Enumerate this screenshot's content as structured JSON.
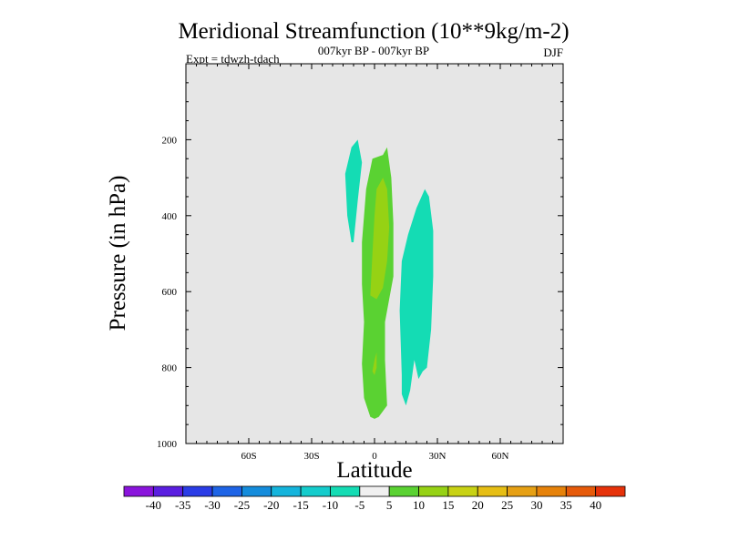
{
  "chart_data": {
    "type": "contour",
    "title": "Meridional Streamfunction (10**9kg/m-2)",
    "subtitle": "007kyr BP - 007kyr BP",
    "left_label": "Expt = tdwzh-tdach",
    "right_label": "DJF",
    "xlabel": "Latitude",
    "ylabel": "Pressure (in hPa)",
    "xlim": [
      -90,
      90
    ],
    "ylim": [
      1000,
      0
    ],
    "x_ticks": [
      {
        "value": -60,
        "label": "60S"
      },
      {
        "value": -30,
        "label": "30S"
      },
      {
        "value": 0,
        "label": "0"
      },
      {
        "value": 30,
        "label": "30N"
      },
      {
        "value": 60,
        "label": "60N"
      }
    ],
    "y_ticks": [
      {
        "value": 200,
        "label": "200"
      },
      {
        "value": 400,
        "label": "400"
      },
      {
        "value": 600,
        "label": "600"
      },
      {
        "value": 800,
        "label": "800"
      },
      {
        "value": 1000,
        "label": "1000"
      }
    ],
    "background_color": "#e6e6e6",
    "colorbar": {
      "labels": [
        "-40",
        "-35",
        "-30",
        "-25",
        "-20",
        "-15",
        "-10",
        "-5",
        "5",
        "10",
        "15",
        "20",
        "25",
        "30",
        "35",
        "40"
      ],
      "colors": [
        "#8a14dc",
        "#5a1ee0",
        "#2a3ce6",
        "#1e64e6",
        "#148cdc",
        "#14b4dc",
        "#14cccc",
        "#14dcb4",
        "#f0f0f0",
        "#5ad232",
        "#96d214",
        "#c8d214",
        "#e6be14",
        "#e6a014",
        "#e6820a",
        "#e65a0a",
        "#e6320a"
      ]
    },
    "regions": [
      {
        "name": "southern-cell-upper",
        "level": "-10 to -5",
        "color": "#14dcb4",
        "outline": [
          [
            -11,
            470
          ],
          [
            -13,
            400
          ],
          [
            -14,
            290
          ],
          [
            -11,
            220
          ],
          [
            -8,
            200
          ],
          [
            -6,
            260
          ],
          [
            -8,
            360
          ],
          [
            -10,
            470
          ]
        ]
      },
      {
        "name": "equatorial-cell-5-10",
        "level": "5 to 10",
        "color": "#5ad232",
        "outline": [
          [
            -2,
            930
          ],
          [
            -5,
            880
          ],
          [
            -6,
            790
          ],
          [
            -5,
            680
          ],
          [
            -6,
            580
          ],
          [
            -6,
            470
          ],
          [
            -4,
            330
          ],
          [
            -1,
            250
          ],
          [
            4,
            240
          ],
          [
            6,
            220
          ],
          [
            8,
            300
          ],
          [
            9,
            420
          ],
          [
            9,
            560
          ],
          [
            7,
            620
          ],
          [
            5,
            680
          ],
          [
            5,
            780
          ],
          [
            6,
            900
          ],
          [
            2,
            930
          ],
          [
            0,
            935
          ]
        ]
      },
      {
        "name": "equatorial-cell-10-15",
        "level": "10 to 15",
        "color": "#96d214",
        "outline": [
          [
            -2,
            610
          ],
          [
            -1,
            500
          ],
          [
            0,
            400
          ],
          [
            1,
            330
          ],
          [
            4,
            300
          ],
          [
            6,
            330
          ],
          [
            7,
            430
          ],
          [
            6,
            520
          ],
          [
            4,
            590
          ],
          [
            1,
            620
          ]
        ]
      },
      {
        "name": "equatorial-cell-10-15-lower",
        "level": "10 to 15",
        "color": "#96d214",
        "outline": [
          [
            -1,
            810
          ],
          [
            0,
            780
          ],
          [
            1,
            760
          ],
          [
            1,
            800
          ],
          [
            0,
            820
          ]
        ]
      },
      {
        "name": "northern-cell",
        "level": "-10 to -5",
        "color": "#14dcb4",
        "outline": [
          [
            13,
            870
          ],
          [
            13,
            820
          ],
          [
            12,
            650
          ],
          [
            13,
            520
          ],
          [
            16,
            450
          ],
          [
            20,
            380
          ],
          [
            24,
            330
          ],
          [
            26,
            350
          ],
          [
            28,
            440
          ],
          [
            28,
            560
          ],
          [
            27,
            700
          ],
          [
            25,
            800
          ],
          [
            23,
            810
          ],
          [
            21,
            830
          ],
          [
            19,
            780
          ],
          [
            17,
            860
          ],
          [
            15,
            900
          ]
        ]
      }
    ]
  }
}
